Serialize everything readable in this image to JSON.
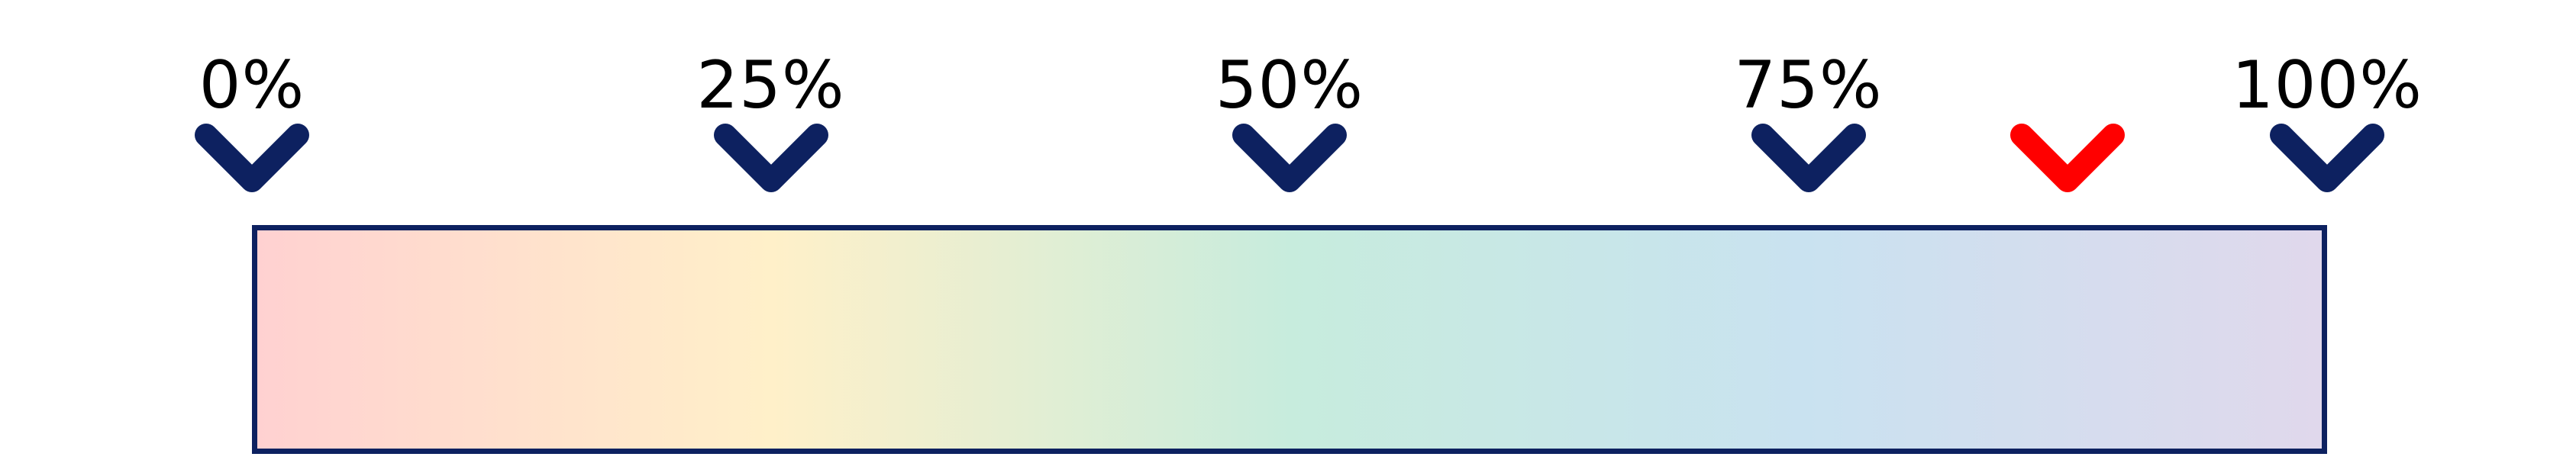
{
  "scale": {
    "ticks": [
      {
        "label": "0%",
        "value": 0,
        "color": "#0d2160"
      },
      {
        "label": "25%",
        "value": 25,
        "color": "#0d2160"
      },
      {
        "label": "50%",
        "value": 50,
        "color": "#0d2160"
      },
      {
        "label": "75%",
        "value": 75,
        "color": "#0d2160"
      },
      {
        "label": "100%",
        "value": 100,
        "color": "#0d2160"
      }
    ],
    "marker": {
      "value": 87.5,
      "color": "#ff0000"
    },
    "gradient_stops": [
      "#ffd1d1",
      "#fff0c9",
      "#c7ecdd",
      "#c9e2f0",
      "#e0d8ec"
    ],
    "border_color": "#0d2160"
  }
}
